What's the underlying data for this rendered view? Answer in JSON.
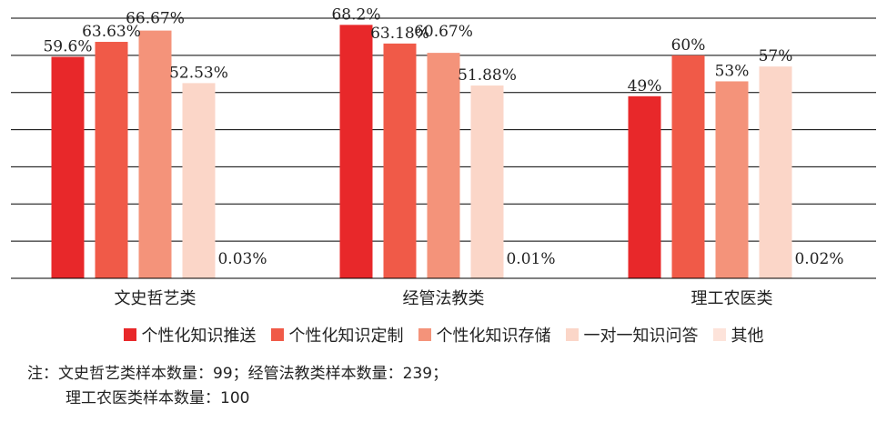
{
  "chart_data": {
    "type": "bar",
    "categories": [
      "文史哲艺类",
      "经管法教类",
      "理工农医类"
    ],
    "series": [
      {
        "name": "个性化知识推送",
        "values": [
          59.6,
          68.2,
          49
        ],
        "labels": [
          "59.6%",
          "68.2%",
          "49%"
        ],
        "color": "#e8282a"
      },
      {
        "name": "个性化知识定制",
        "values": [
          63.63,
          63.18,
          60
        ],
        "labels": [
          "63.63%",
          "63.18%",
          "60%"
        ],
        "color": "#f05a48"
      },
      {
        "name": "个性化知识存储",
        "values": [
          66.67,
          60.67,
          53
        ],
        "labels": [
          "66.67%",
          "60.67%",
          "53%"
        ],
        "color": "#f4937a"
      },
      {
        "name": "一对一知识问答",
        "values": [
          52.53,
          51.88,
          57
        ],
        "labels": [
          "52.53%",
          "51.88%",
          "57%"
        ],
        "color": "#fbd6c8"
      },
      {
        "name": "其他",
        "values": [
          0.03,
          0.01,
          0.02
        ],
        "labels": [
          "0.03%",
          "0.01%",
          "0.02%"
        ],
        "color": "#fde3da"
      }
    ],
    "ylim": [
      0,
      70
    ],
    "grid": true,
    "legend_position": "bottom"
  },
  "note": {
    "line1": "注：文史哲艺类样本数量：99；经管法教类样本数量：239；",
    "line2": "理工农医类样本数量：100"
  }
}
